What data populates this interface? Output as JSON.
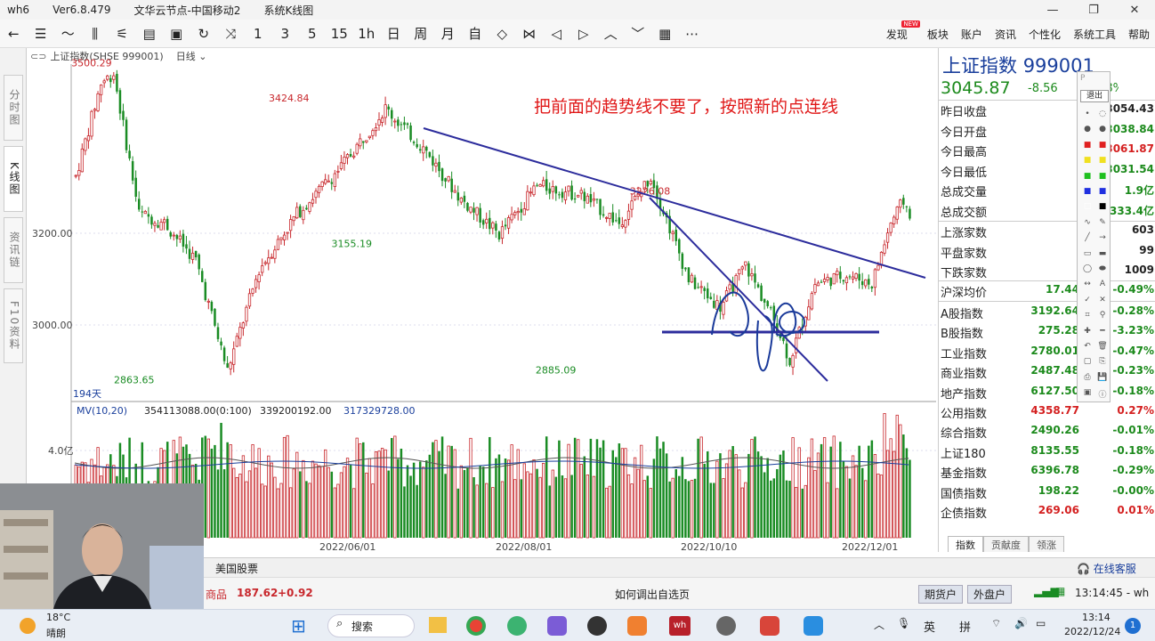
{
  "window": {
    "app": "wh6",
    "version": "Ver6.8.479",
    "server": "文华云节点-中国移动2",
    "module": "系统K线图",
    "controls": [
      "—",
      "❐",
      "✕"
    ]
  },
  "toolbar": {
    "icons": [
      "back-icon",
      "list-icon",
      "line-chart-icon",
      "kline-icon",
      "tick-icon",
      "report-icon",
      "save-icon",
      "refresh-icon",
      "compare-icon"
    ],
    "periods": [
      "1",
      "3",
      "5",
      "15",
      "1h",
      "日",
      "周",
      "月",
      "自"
    ],
    "nav_icons": [
      "expand-icon",
      "shrink-icon",
      "left-icon",
      "right-icon",
      "up-icon",
      "down-icon",
      "layout-icon",
      "more-icon"
    ],
    "menus": [
      "发现",
      "板块",
      "账户",
      "资讯",
      "个性化",
      "系统工具",
      "帮助"
    ],
    "new_badge": "NEW"
  },
  "left_tabs": [
    "分时图",
    "K线图",
    "资讯链",
    "F10资料"
  ],
  "chart_header": {
    "instrument": "上证指数(SHSE 999001)",
    "period": "日线"
  },
  "annotation": "把前面的趋势线不要了，按照新的点连线",
  "chart_data": [
    {
      "type": "candlestick",
      "title": "上证指数(SHSE 999001) 日线",
      "y_ticks": [
        "3200.00",
        "3000.00"
      ],
      "yrange": [
        2800,
        3520
      ],
      "bars_count_label": "194天",
      "x_ticks": [
        "2022/06/01",
        "2022/08/01",
        "2022/10/10",
        "2022/12/01"
      ],
      "labeled_points": [
        {
          "label": "3500.29",
          "date": "2022/04/08",
          "value": 3500.29,
          "kind": "high"
        },
        {
          "label": "2863.65",
          "date": "2022/04/27",
          "value": 2863.65,
          "kind": "low"
        },
        {
          "label": "3424.84",
          "date": "2022/07/05",
          "value": 3424.84,
          "kind": "high"
        },
        {
          "label": "3155.19",
          "date": "2022/08/02",
          "value": 3155.19,
          "kind": "low"
        },
        {
          "label": "2885.09",
          "date": "2022/11/01",
          "value": 2885.09,
          "kind": "low"
        },
        {
          "label": "3226.08",
          "date": "2022/12/13",
          "value": 3226.08,
          "kind": "high"
        }
      ]
    },
    {
      "type": "bar",
      "title": "MV(10,20)",
      "indicator_values": [
        "354113088.00(0:100)",
        "339200192.00",
        "317329728.00"
      ],
      "y_ticks": [
        "4.0亿"
      ]
    }
  ],
  "quote_panel": {
    "name": "上证指数",
    "code": "999001",
    "price": "3045.87",
    "change": "-8.56",
    "pct": "-0.28%",
    "rows": [
      {
        "label": "昨日收盘",
        "value": "3054.43",
        "color": "#222222"
      },
      {
        "label": "今日开盘",
        "value": "3038.84",
        "color": "#1c8a1c"
      },
      {
        "label": "今日最高",
        "value": "3061.87",
        "color": "#d42020"
      },
      {
        "label": "今日最低",
        "value": "3031.54",
        "color": "#1c8a1c"
      },
      {
        "label": "总成交量",
        "value": "1.9亿",
        "color": "#1c8a1c"
      },
      {
        "label": "总成交额",
        "value": "2333.4亿",
        "color": "#1c8a1c"
      }
    ],
    "breadth": [
      {
        "label": "上涨家数",
        "value": "603"
      },
      {
        "label": "平盘家数",
        "value": "99"
      },
      {
        "label": "下跌家数",
        "value": "1009"
      }
    ],
    "indices": [
      {
        "label": "沪深均价",
        "value": "17.44",
        "pct": "-0.49%",
        "color": "#1c8a1c"
      },
      {
        "label": "A股指数",
        "value": "3192.64",
        "pct": "-0.28%",
        "color": "#1c8a1c"
      },
      {
        "label": "B股指数",
        "value": "275.28",
        "pct": "-3.23%",
        "color": "#1c8a1c"
      },
      {
        "label": "工业指数",
        "value": "2780.01",
        "pct": "-0.47%",
        "color": "#1c8a1c"
      },
      {
        "label": "商业指数",
        "value": "2487.48",
        "pct": "-0.23%",
        "color": "#1c8a1c"
      },
      {
        "label": "地产指数",
        "value": "6127.50",
        "pct": "-0.18%",
        "color": "#1c8a1c"
      },
      {
        "label": "公用指数",
        "value": "4358.77",
        "pct": "0.27%",
        "color": "#d42020"
      },
      {
        "label": "综合指数",
        "value": "2490.26",
        "pct": "-0.01%",
        "color": "#1c8a1c"
      },
      {
        "label": "上证180",
        "value": "8135.55",
        "pct": "-0.18%",
        "color": "#1c8a1c"
      },
      {
        "label": "基金指数",
        "value": "6396.78",
        "pct": "-0.29%",
        "color": "#1c8a1c"
      },
      {
        "label": "国债指数",
        "value": "198.22",
        "pct": "-0.00%",
        "color": "#1c8a1c"
      },
      {
        "label": "企债指数",
        "value": "269.06",
        "pct": "0.01%",
        "color": "#d42020"
      }
    ],
    "tabs": [
      "指数",
      "贡献度",
      "领涨"
    ]
  },
  "palette": {
    "exit_label": "退出",
    "p_label": "P"
  },
  "bottom": {
    "us_stocks": "美国股票",
    "online_service": "在线客服",
    "ticker_label": "商品",
    "ticker_value": "187.62",
    "ticker_change": "+0.92",
    "hint": "如何调出自选页",
    "futures_account": "期货户",
    "fx_account": "外盘户",
    "clock": "13:14:45 - wh"
  },
  "taskbar": {
    "weather_temp": "18°C",
    "weather_desc": "晴朗",
    "search": "搜索",
    "ime_lang": "英",
    "ime_mode": "拼",
    "time": "13:14",
    "date": "2022/12/24",
    "notif": "1"
  },
  "colors": {
    "up": "#c8282d",
    "down": "#1a8c24",
    "trendline": "#2c2c9c",
    "annotation": "#e01818"
  }
}
